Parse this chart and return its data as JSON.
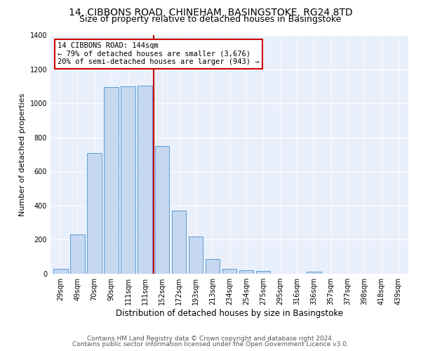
{
  "title": "14, CIBBONS ROAD, CHINEHAM, BASINGSTOKE, RG24 8TD",
  "subtitle": "Size of property relative to detached houses in Basingstoke",
  "xlabel": "Distribution of detached houses by size in Basingstoke",
  "ylabel": "Number of detached properties",
  "bar_labels": [
    "29sqm",
    "49sqm",
    "70sqm",
    "90sqm",
    "111sqm",
    "131sqm",
    "152sqm",
    "172sqm",
    "193sqm",
    "213sqm",
    "234sqm",
    "254sqm",
    "275sqm",
    "295sqm",
    "316sqm",
    "336sqm",
    "357sqm",
    "377sqm",
    "398sqm",
    "418sqm",
    "439sqm"
  ],
  "bar_values": [
    30,
    230,
    710,
    1095,
    1100,
    1105,
    750,
    370,
    220,
    85,
    30,
    20,
    18,
    0,
    0,
    12,
    0,
    0,
    0,
    0,
    0
  ],
  "bar_color": "#c5d8f0",
  "bar_edge_color": "#5b9bd5",
  "vline_x": 5.5,
  "vline_color": "#cc0000",
  "annotation_text": "14 CIBBONS ROAD: 144sqm\n← 79% of detached houses are smaller (3,676)\n20% of semi-detached houses are larger (943) →",
  "annotation_box_color": "#cc0000",
  "ylim": [
    0,
    1400
  ],
  "yticks": [
    0,
    200,
    400,
    600,
    800,
    1000,
    1200,
    1400
  ],
  "bg_color": "#eaf0fb",
  "footer_line1": "Contains HM Land Registry data © Crown copyright and database right 2024.",
  "footer_line2": "Contains public sector information licensed under the Open Government Licence v3.0.",
  "title_fontsize": 10,
  "subtitle_fontsize": 9,
  "xlabel_fontsize": 8.5,
  "ylabel_fontsize": 8,
  "tick_fontsize": 7,
  "annotation_fontsize": 7.5,
  "footer_fontsize": 6.5
}
